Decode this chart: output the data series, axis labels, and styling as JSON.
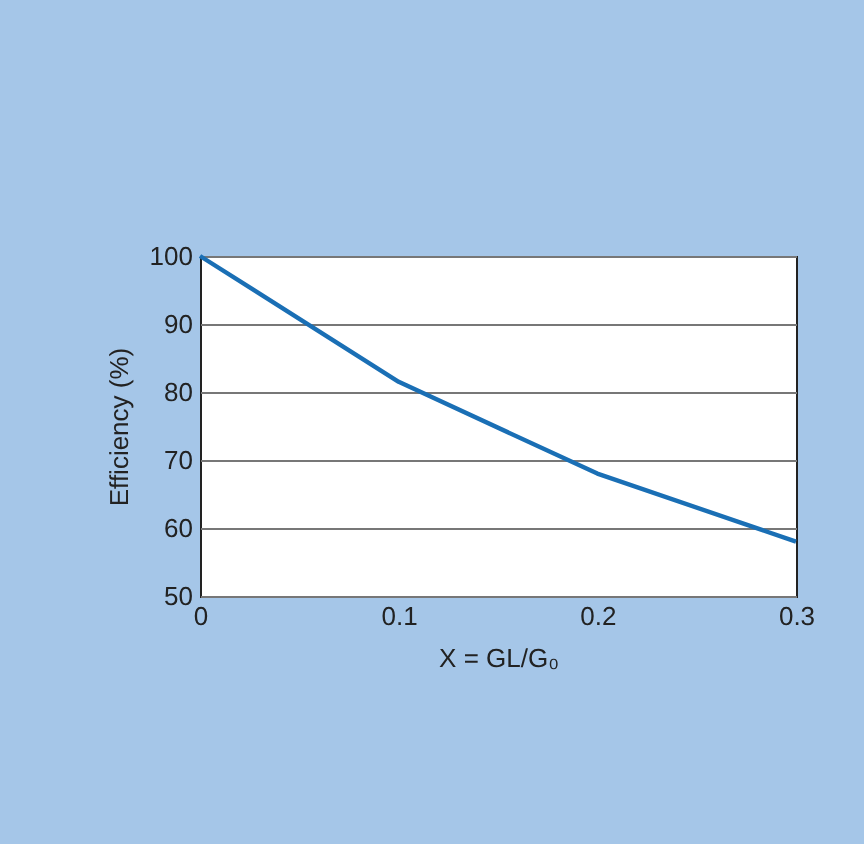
{
  "chart_data": {
    "type": "line",
    "xlabel": "X = GL/G₀",
    "ylabel": "Efficiency (%)",
    "x": [
      0,
      0.1,
      0.2,
      0.3
    ],
    "series": [
      {
        "color": "#1a6fb5",
        "values": [
          100,
          81.5,
          68,
          58
        ]
      }
    ],
    "xlim": [
      0,
      0.3
    ],
    "ylim": [
      50,
      100
    ],
    "xticks": [
      0,
      0.1,
      0.2,
      0.3
    ],
    "yticks": [
      50,
      60,
      70,
      80,
      90,
      100
    ],
    "grid": "y",
    "legend": false,
    "marker": "none",
    "line_style": "solid"
  }
}
